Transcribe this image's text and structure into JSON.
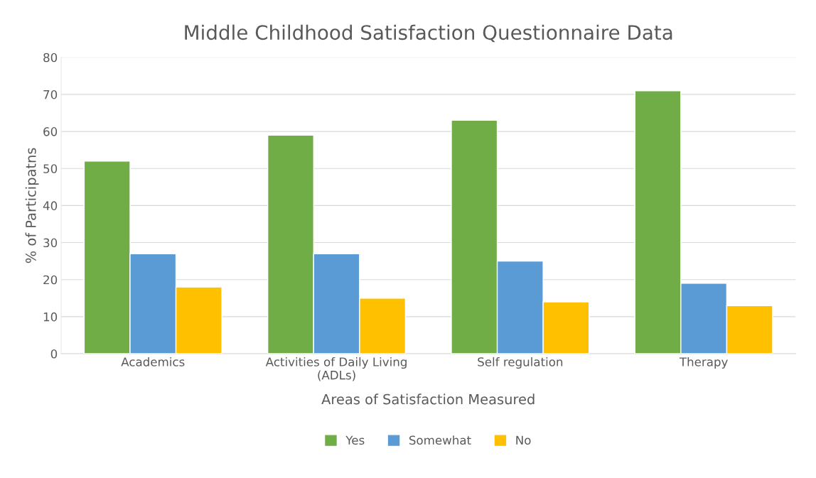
{
  "chart_data": {
    "type": "bar",
    "title": "Middle Childhood Satisfaction Questionnaire Data",
    "xlabel": "Areas of Satisfaction Measured",
    "ylabel": "% of Participatns",
    "categories": [
      "Academics",
      "Activities of Daily Living\n(ADLs)",
      "Self regulation",
      "Therapy"
    ],
    "series": [
      {
        "name": "Yes",
        "color": "#70ad47",
        "values": [
          52,
          59,
          63,
          71
        ]
      },
      {
        "name": "Somewhat",
        "color": "#5b9bd5",
        "values": [
          27,
          27,
          25,
          19
        ]
      },
      {
        "name": "No",
        "color": "#ffc000",
        "values": [
          18,
          15,
          14,
          13
        ]
      }
    ],
    "ylim": [
      0,
      80
    ],
    "yticks": [
      0,
      10,
      20,
      30,
      40,
      50,
      60,
      70,
      80
    ],
    "grid": "y",
    "legend": "bottom"
  }
}
